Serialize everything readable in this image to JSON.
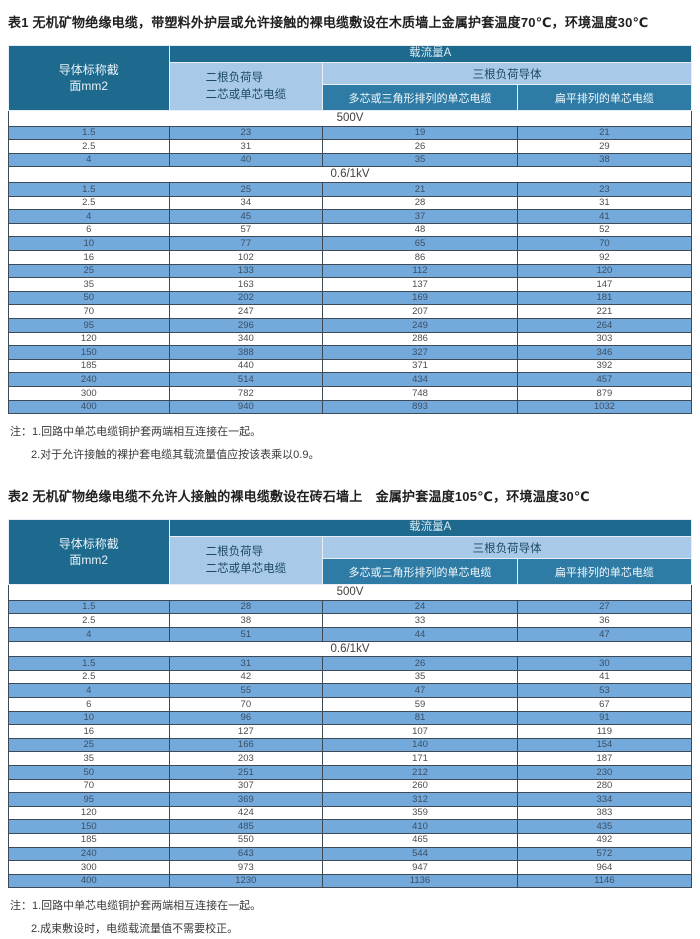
{
  "colors": {
    "header_dark": "#1d6a8e",
    "header_mid": "#2e7ca6",
    "header_light_blue": "#a9c9e8",
    "row_blue": "#74a9dc",
    "border_dark": "#3e4b57"
  },
  "shared_header": {
    "conductor": "导体标称截\n面mm2",
    "capacity": "载流量A",
    "two_conductors": "二根负荷导\n二芯或单芯电缆",
    "three_conductors": "三根负荷导体",
    "multi_core": "多芯或三角形排列的单芯电缆",
    "flat": "扁平排列的单芯电缆",
    "section_500v": "500V",
    "section_06_1kv": "0.6/1kV"
  },
  "table1": {
    "title": "表1 无机矿物绝缘电缆，带塑料外护层或允许接触的裸电缆敷设在木质墙上金属护套温度70℃，环境温度30℃",
    "rows_500v": [
      [
        "1.5",
        "23",
        "19",
        "21"
      ],
      [
        "2.5",
        "31",
        "26",
        "29"
      ],
      [
        "4",
        "40",
        "35",
        "38"
      ]
    ],
    "rows_06_1kv": [
      [
        "1.5",
        "25",
        "21",
        "23"
      ],
      [
        "2.5",
        "34",
        "28",
        "31"
      ],
      [
        "4",
        "45",
        "37",
        "41"
      ],
      [
        "6",
        "57",
        "48",
        "52"
      ],
      [
        "10",
        "77",
        "65",
        "70"
      ],
      [
        "16",
        "102",
        "86",
        "92"
      ],
      [
        "25",
        "133",
        "112",
        "120"
      ],
      [
        "35",
        "163",
        "137",
        "147"
      ],
      [
        "50",
        "202",
        "169",
        "181"
      ],
      [
        "70",
        "247",
        "207",
        "221"
      ],
      [
        "95",
        "296",
        "249",
        "264"
      ],
      [
        "120",
        "340",
        "286",
        "303"
      ],
      [
        "150",
        "388",
        "327",
        "346"
      ],
      [
        "185",
        "440",
        "371",
        "392"
      ],
      [
        "240",
        "514",
        "434",
        "457"
      ],
      [
        "300",
        "782",
        "748",
        "879"
      ],
      [
        "400",
        "940",
        "893",
        "1032"
      ]
    ],
    "notes": [
      "注：1.回路中单芯电缆铜护套两端相互连接在一起。",
      "2.对于允许接触的裸护套电缆其载流量值应按该表乘以0.9。"
    ]
  },
  "table2": {
    "title": "表2 无机矿物绝缘电缆不允许人接触的裸电缆敷设在砖石墙上　金属护套温度105℃，环境温度30℃",
    "rows_500v": [
      [
        "1.5",
        "28",
        "24",
        "27"
      ],
      [
        "2.5",
        "38",
        "33",
        "36"
      ],
      [
        "4",
        "51",
        "44",
        "47"
      ]
    ],
    "rows_06_1kv": [
      [
        "1.5",
        "31",
        "26",
        "30"
      ],
      [
        "2.5",
        "42",
        "35",
        "41"
      ],
      [
        "4",
        "55",
        "47",
        "53"
      ],
      [
        "6",
        "70",
        "59",
        "67"
      ],
      [
        "10",
        "96",
        "81",
        "91"
      ],
      [
        "16",
        "127",
        "107",
        "119"
      ],
      [
        "25",
        "166",
        "140",
        "154"
      ],
      [
        "35",
        "203",
        "171",
        "187"
      ],
      [
        "50",
        "251",
        "212",
        "230"
      ],
      [
        "70",
        "307",
        "260",
        "280"
      ],
      [
        "95",
        "369",
        "312",
        "334"
      ],
      [
        "120",
        "424",
        "359",
        "383"
      ],
      [
        "150",
        "485",
        "410",
        "435"
      ],
      [
        "185",
        "550",
        "465",
        "492"
      ],
      [
        "240",
        "643",
        "544",
        "572"
      ],
      [
        "300",
        "973",
        "947",
        "964"
      ],
      [
        "400",
        "1230",
        "1136",
        "1146"
      ]
    ],
    "notes": [
      "注：1.回路中单芯电缆铜护套两端相互连接在一起。",
      "2.成束敷设时，电缆载流量值不需要校正。"
    ]
  }
}
